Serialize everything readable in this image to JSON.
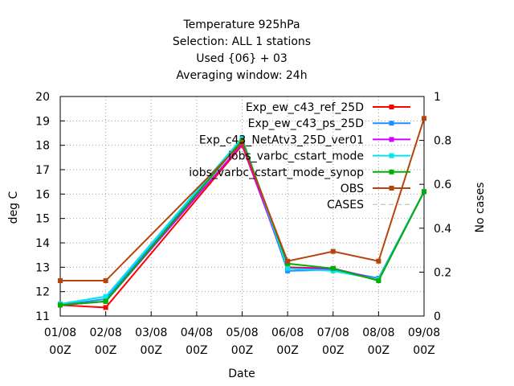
{
  "chart_data": {
    "type": "line",
    "title_lines": [
      "Temperature 925hPa",
      "Selection: ALL      1 stations",
      "Used {06} + 03",
      "Averaging window: 24h"
    ],
    "xlabel": "Date",
    "ylabel": "deg C",
    "y2label": "No cases",
    "categories": [
      "01/08 00Z",
      "02/08 00Z",
      "03/08 00Z",
      "04/08 00Z",
      "05/08 00Z",
      "06/08 00Z",
      "07/08 00Z",
      "08/08 00Z",
      "09/08 00Z"
    ],
    "x_tick_labels": [
      [
        "01/08",
        "00Z"
      ],
      [
        "02/08",
        "00Z"
      ],
      [
        "03/08",
        "00Z"
      ],
      [
        "04/08",
        "00Z"
      ],
      [
        "05/08",
        "00Z"
      ],
      [
        "06/08",
        "00Z"
      ],
      [
        "07/08",
        "00Z"
      ],
      [
        "08/08",
        "00Z"
      ],
      [
        "09/08",
        "00Z"
      ]
    ],
    "ylim": [
      11,
      20
    ],
    "y_ticks": [
      11,
      12,
      13,
      14,
      15,
      16,
      17,
      18,
      19,
      20
    ],
    "y2lim": [
      0,
      1
    ],
    "y2_ticks": [
      "0",
      "0.2",
      "0.4",
      "0.6",
      "0.8",
      "1"
    ],
    "grid": true,
    "legend_position": "top-right",
    "series": [
      {
        "name": "Exp_ew_c43_ref_25D",
        "color": "#ff0000",
        "x": [
          0,
          1,
          4,
          5,
          6,
          7,
          8
        ],
        "values": [
          11.45,
          11.35,
          18.0,
          13.0,
          12.95,
          12.5,
          16.1
        ]
      },
      {
        "name": "Exp_ew_c43_ps_25D",
        "color": "#1e90ff",
        "x": [
          0,
          1,
          4,
          5,
          6,
          7,
          8
        ],
        "values": [
          11.45,
          11.7,
          18.2,
          12.85,
          12.9,
          12.55,
          16.1
        ]
      },
      {
        "name": "Exp_c43_NetAtv3_25D_ver01",
        "color": "#cc00ff",
        "x": [
          0,
          1,
          4,
          5,
          6,
          7,
          8
        ],
        "values": [
          11.45,
          11.6,
          18.05,
          12.95,
          12.95,
          12.5,
          16.1
        ]
      },
      {
        "name": "iobs_varbc_cstart_mode",
        "color": "#00e5ee",
        "x": [
          0,
          1,
          4,
          5,
          6,
          7,
          8
        ],
        "values": [
          11.5,
          11.8,
          18.3,
          12.95,
          12.85,
          12.5,
          16.1
        ]
      },
      {
        "name": "iobs_varbc_cstart_mode_synop",
        "color": "#00b000",
        "x": [
          0,
          1,
          4,
          5,
          6,
          7,
          8
        ],
        "values": [
          11.45,
          11.6,
          18.2,
          13.15,
          12.95,
          12.45,
          16.1
        ]
      },
      {
        "name": "OBS",
        "color": "#b8430b",
        "x": [
          0,
          1,
          4,
          5,
          6,
          7,
          8
        ],
        "values": [
          12.45,
          12.45,
          18.1,
          13.25,
          13.65,
          13.25,
          19.1
        ]
      },
      {
        "name": "CASES",
        "color": "#b8b8b8",
        "dashed": true,
        "x": [],
        "values": []
      }
    ]
  }
}
